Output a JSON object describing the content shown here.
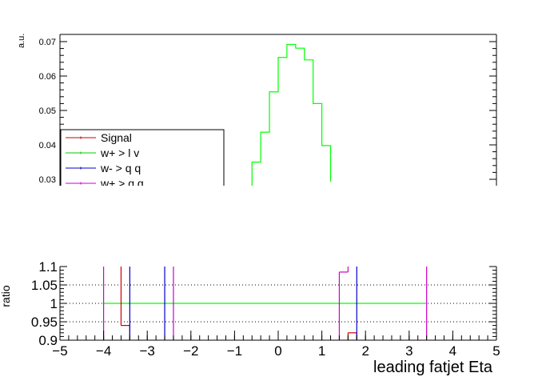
{
  "chart_data": [
    {
      "type": "line",
      "panel": "main",
      "ylabel": "a.u.",
      "ylim_visible": [
        0.025,
        0.072
      ],
      "yticks": [
        0.03,
        0.04,
        0.05,
        0.06,
        0.07
      ],
      "ytick_labels": [
        "0.03",
        "0.04",
        "0.05",
        "0.06",
        "0.07"
      ],
      "xlim": [
        -5,
        5
      ],
      "grid": false,
      "legend_position": "bottom-left (clipped)",
      "legend": [
        {
          "label": "Signal",
          "color": "#cc0000"
        },
        {
          "label": "w+ > l v",
          "color": "#00cc00"
        },
        {
          "label": "w- > q q",
          "color": "#0000cc"
        },
        {
          "label": "w+ > q q",
          "color": "#cc00cc"
        }
      ],
      "series": [
        {
          "name": "w+ > l v",
          "color": "#00ff00",
          "bin_edges": [
            -0.6,
            -0.4,
            -0.2,
            0.0,
            0.2,
            0.4,
            0.6,
            0.8,
            1.0,
            1.2
          ],
          "values": [
            0.035,
            0.0437,
            0.0554,
            0.0654,
            0.0692,
            0.0681,
            0.0647,
            0.052,
            0.0398,
            0.0293
          ]
        }
      ]
    },
    {
      "type": "line",
      "panel": "ratio",
      "xlabel": "leading fatjet Eta",
      "xlim": [
        -5,
        5
      ],
      "xticks": [
        -5,
        -4,
        -3,
        -2,
        -1,
        0,
        1,
        2,
        3,
        4,
        5
      ],
      "xtick_labels": [
        "−5",
        "−4",
        "−3",
        "−2",
        "−1",
        "0",
        "1",
        "2",
        "3",
        "4",
        "5"
      ],
      "ylim": [
        0.9,
        1.1
      ],
      "yticks": [
        0.9,
        0.95,
        1.0,
        1.05,
        1.1
      ],
      "ytick_labels": [
        "0.9",
        "0.95",
        "1",
        "1.05",
        "1.1"
      ],
      "ylabel": "ratio",
      "grid": "dotted horizontal",
      "series": [
        {
          "name": "w+ > l v",
          "color": "#00ff00",
          "segments": [
            [
              -4.0,
              1.0,
              3.4,
              1.0
            ]
          ]
        },
        {
          "name": "Signal",
          "color": "#cc0000",
          "segments": [
            [
              -3.6,
              1.2,
              -3.6,
              0.94
            ],
            [
              -3.6,
              0.94,
              -3.4,
              0.94
            ],
            [
              -3.4,
              0.94,
              -3.4,
              0.8
            ],
            [
              1.6,
              0.8,
              1.6,
              0.92
            ],
            [
              1.6,
              0.92,
              1.8,
              0.92
            ],
            [
              1.8,
              0.92,
              1.8,
              0.8
            ]
          ]
        },
        {
          "name": "w- > q q",
          "color": "#0000cc",
          "segments": [
            [
              -3.4,
              1.2,
              -3.4,
              0.8
            ],
            [
              -2.6,
              1.2,
              -2.6,
              0.8
            ],
            [
              1.8,
              1.2,
              1.8,
              0.8
            ]
          ]
        },
        {
          "name": "w+ > q q",
          "color": "#cc00cc",
          "segments": [
            [
              -4.0,
              1.2,
              -4.0,
              0.8
            ],
            [
              -2.4,
              1.2,
              -2.4,
              0.8
            ],
            [
              1.4,
              0.8,
              1.4,
              1.085
            ],
            [
              1.4,
              1.085,
              1.6,
              1.085
            ],
            [
              1.6,
              1.085,
              1.6,
              1.1
            ],
            [
              3.4,
              1.2,
              3.4,
              0.8
            ]
          ]
        }
      ]
    }
  ]
}
